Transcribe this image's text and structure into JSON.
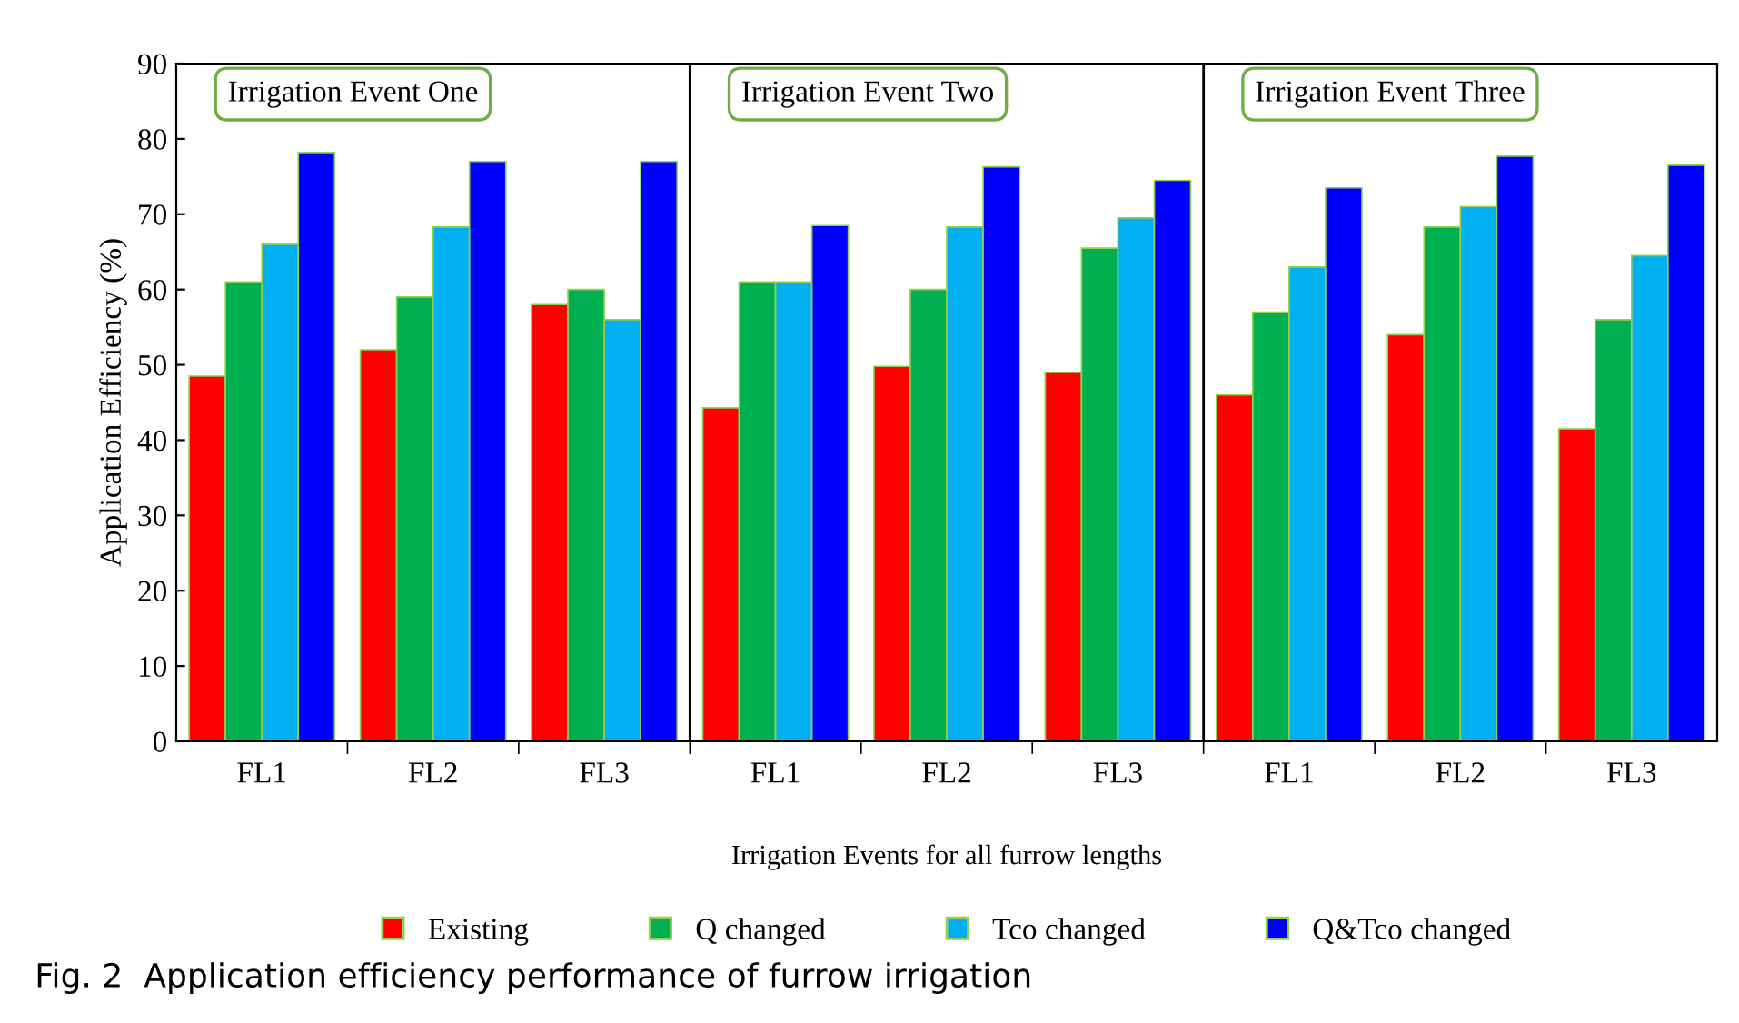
{
  "chart_data": {
    "type": "bar",
    "title": "Fig. 2  Application efficiency performance of furrow irrigation",
    "xlabel": "Irrigation Events for all furrow lengths",
    "ylabel": "Application Efficiency (%)",
    "categories": [
      "FL1",
      "FL2",
      "FL3",
      "FL1",
      "FL2",
      "FL3",
      "FL1",
      "FL2",
      "FL3"
    ],
    "series": [
      {
        "name": "Existing",
        "color": "#ff0000",
        "values": [
          48.5,
          52,
          58,
          44.3,
          49.8,
          49,
          46,
          54,
          41.5
        ]
      },
      {
        "name": "Q changed",
        "color": "#00b050",
        "values": [
          61,
          59,
          60,
          61,
          60,
          65.5,
          57,
          68.3,
          56
        ]
      },
      {
        "name": "Tco changed",
        "color": "#00b0f0",
        "values": [
          66,
          68.3,
          56,
          61,
          68.3,
          69.5,
          63,
          71,
          64.5
        ]
      },
      {
        "name": "Q&Tco changed",
        "color": "#0000ff",
        "values": [
          78.2,
          77,
          77,
          68.5,
          76.3,
          74.5,
          73.5,
          77.7,
          76.5
        ]
      }
    ],
    "annotations": [
      "Irrigation Event One",
      "Irrigation Event Two",
      "Irrigation Event Three"
    ],
    "ylim": [
      0,
      90
    ],
    "yticks": [
      0,
      10,
      20,
      30,
      40,
      50,
      60,
      70,
      80,
      90
    ],
    "grid": false,
    "legend": "bottom"
  }
}
